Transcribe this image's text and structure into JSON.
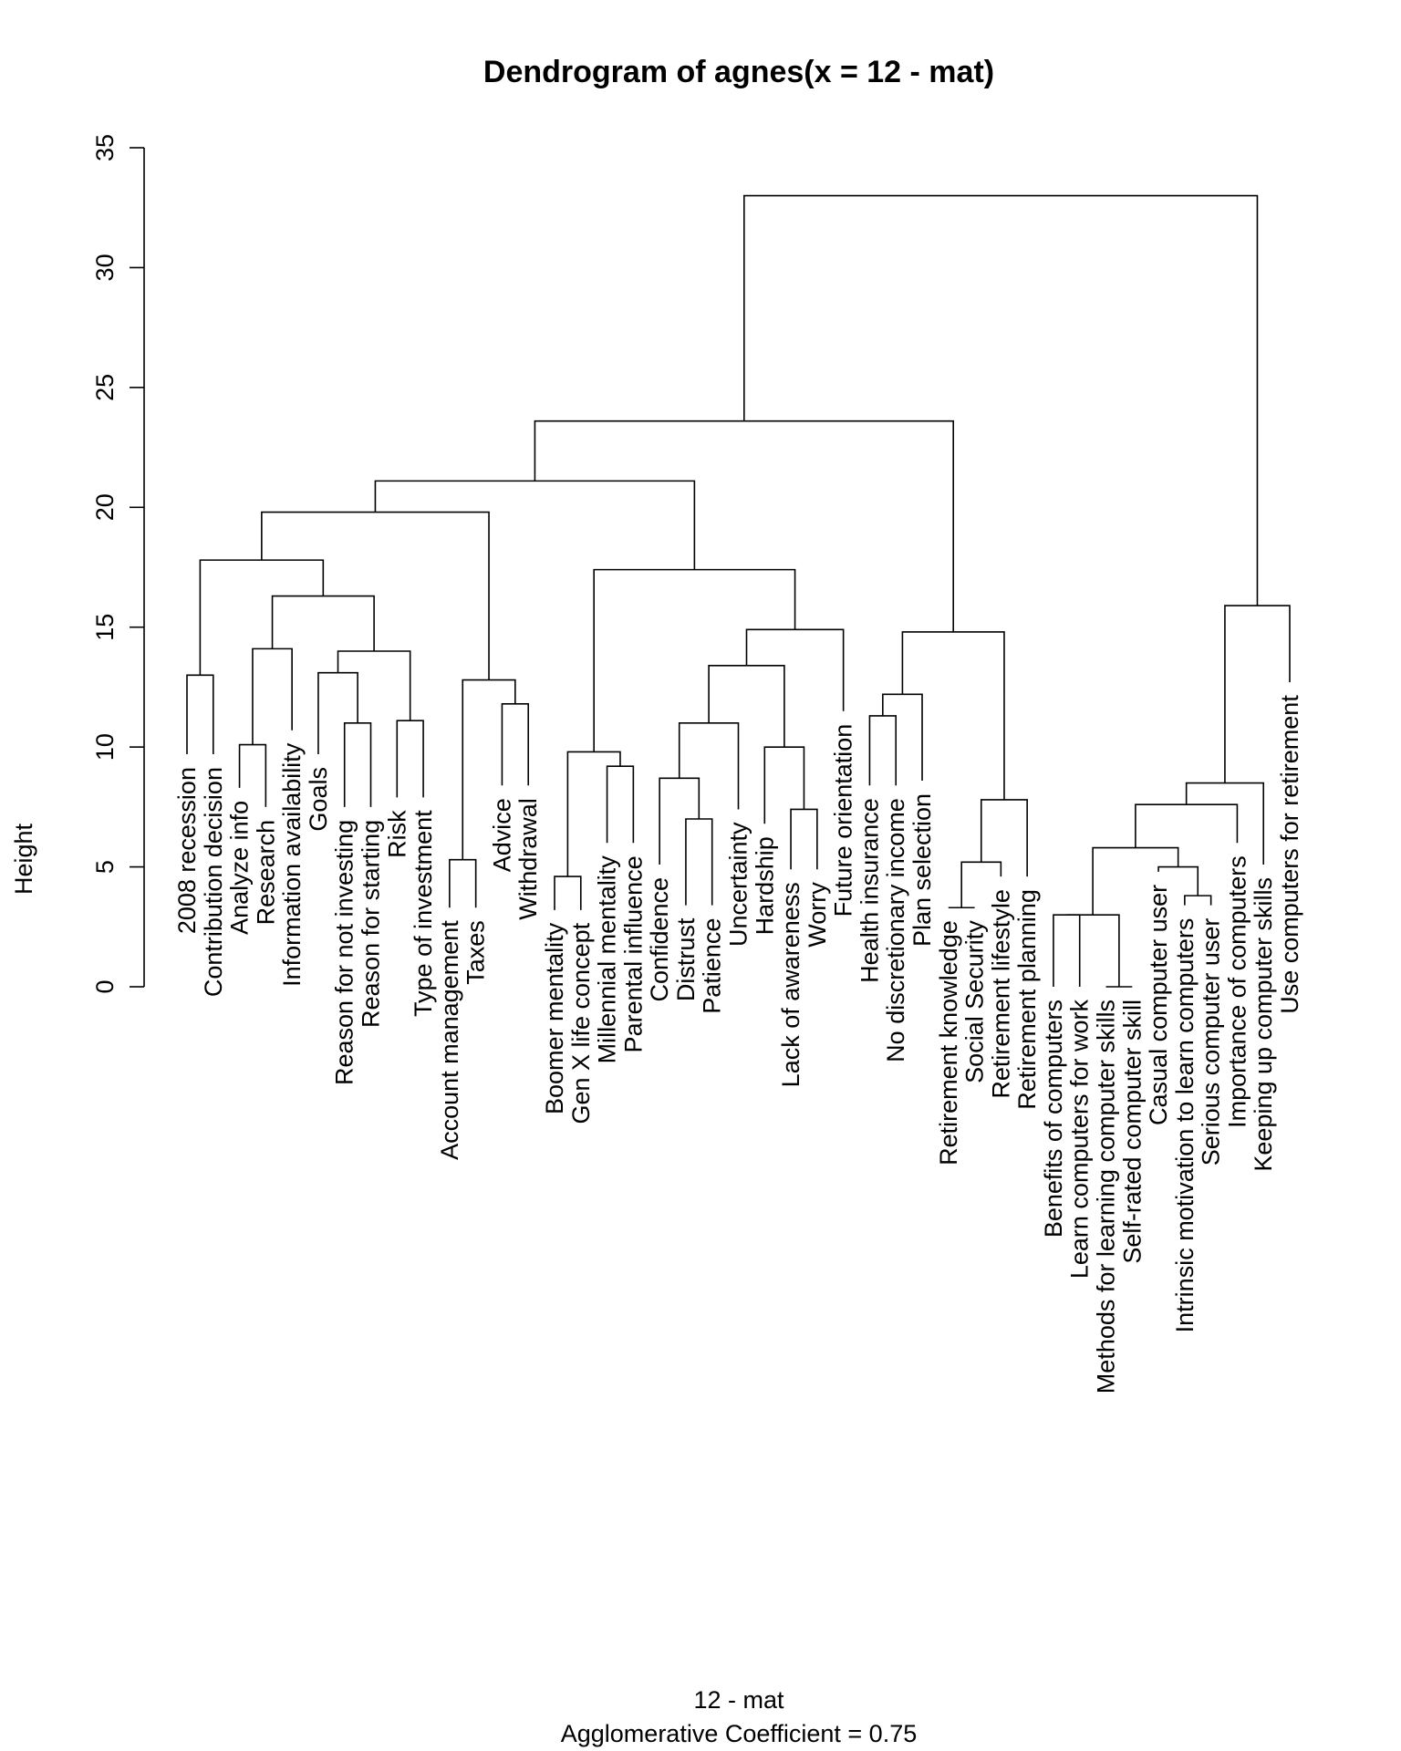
{
  "chart_data": {
    "type": "dendrogram",
    "title": "Dendrogram of  agnes(x = 12 - mat)",
    "xlabel": "12 - mat",
    "subtitle": "Agglomerative Coefficient =  0.75",
    "ylabel": "Height",
    "ylim": [
      0,
      35
    ],
    "yticks": [
      0,
      5,
      10,
      15,
      20,
      25,
      30,
      35
    ],
    "leaves": [
      "2008 recession",
      "Contribution decision",
      "Analyze info",
      "Research",
      "Information availability",
      "Goals",
      "Reason for not investing",
      "Reason for starting",
      "Risk",
      "Type of investment",
      "Account management",
      "Taxes",
      "Advice",
      "Withdrawal",
      "Boomer mentality",
      "Gen X life concept",
      "Millennial mentality",
      "Parental influence",
      "Confidence",
      "Distrust",
      "Patience",
      "Uncertainty",
      "Hardship",
      "Lack of awareness",
      "Worry",
      "Future orientation",
      "Health insurance",
      "No discretionary income",
      "Plan selection",
      "Retirement knowledge",
      "Social Security",
      "Retirement lifestyle",
      "Retirement planning",
      "Benefits of computers",
      "Learn computers for work",
      "Methods for learning computer skills",
      "Self-rated computer skill",
      "Casual computer user",
      "Intrinsic motivation to learn computers",
      "Serious computer user",
      "Importance of computers",
      "Keeping up computer skills",
      "Use computers for retirement"
    ],
    "leaf_heights": [
      9.7,
      9.7,
      8.3,
      7.5,
      10.7,
      9.7,
      7.5,
      7.5,
      7.9,
      7.9,
      3.3,
      3.3,
      8.4,
      8.4,
      3.2,
      3.2,
      6.0,
      6.0,
      5.1,
      3.4,
      3.4,
      7.4,
      6.8,
      4.9,
      4.9,
      11.5,
      8.4,
      8.4,
      8.6,
      3.3,
      3.3,
      4.6,
      4.6,
      0.0,
      0.0,
      0.0,
      0.0,
      4.8,
      3.4,
      3.4,
      6.0,
      5.1,
      12.7
    ],
    "merges": [
      {
        "a": -1,
        "b": -2,
        "h": 13.0
      },
      {
        "a": -3,
        "b": -4,
        "h": 10.1
      },
      {
        "a": 2,
        "b": -5,
        "h": 14.1
      },
      {
        "a": -7,
        "b": -8,
        "h": 11.0
      },
      {
        "a": -6,
        "b": 4,
        "h": 13.1
      },
      {
        "a": -9,
        "b": -10,
        "h": 11.1
      },
      {
        "a": 5,
        "b": 6,
        "h": 14.0
      },
      {
        "a": 3,
        "b": 7,
        "h": 16.3
      },
      {
        "a": 1,
        "b": 8,
        "h": 17.8
      },
      {
        "a": -11,
        "b": -12,
        "h": 5.3
      },
      {
        "a": -13,
        "b": -14,
        "h": 11.8
      },
      {
        "a": 10,
        "b": 11,
        "h": 12.8
      },
      {
        "a": 9,
        "b": 12,
        "h": 19.8
      },
      {
        "a": -15,
        "b": -16,
        "h": 4.6
      },
      {
        "a": -17,
        "b": -18,
        "h": 9.2
      },
      {
        "a": 14,
        "b": 15,
        "h": 9.8
      },
      {
        "a": -20,
        "b": -21,
        "h": 7.0
      },
      {
        "a": -19,
        "b": 17,
        "h": 8.7
      },
      {
        "a": 18,
        "b": -22,
        "h": 11.0
      },
      {
        "a": -24,
        "b": -25,
        "h": 7.4
      },
      {
        "a": -23,
        "b": 20,
        "h": 10.0
      },
      {
        "a": 19,
        "b": 21,
        "h": 13.4
      },
      {
        "a": 22,
        "b": -26,
        "h": 14.9
      },
      {
        "a": 16,
        "b": 23,
        "h": 17.4
      },
      {
        "a": 13,
        "b": 24,
        "h": 21.1
      },
      {
        "a": -27,
        "b": -28,
        "h": 11.3
      },
      {
        "a": 26,
        "b": -29,
        "h": 12.2
      },
      {
        "a": -30,
        "b": -31,
        "h": 3.3
      },
      {
        "a": 28,
        "b": -32,
        "h": 5.2
      },
      {
        "a": 29,
        "b": -33,
        "h": 7.8
      },
      {
        "a": 27,
        "b": 30,
        "h": 14.8
      },
      {
        "a": 25,
        "b": 31,
        "h": 23.6
      },
      {
        "a": -34,
        "b": -35,
        "h": 3.0
      },
      {
        "a": -36,
        "b": -37,
        "h": 0.0
      },
      {
        "a": 33,
        "b": 34,
        "h": 3.0
      },
      {
        "a": -39,
        "b": -40,
        "h": 3.8
      },
      {
        "a": -38,
        "b": 36,
        "h": 5.0
      },
      {
        "a": 35,
        "b": 37,
        "h": 5.8
      },
      {
        "a": 38,
        "b": -41,
        "h": 7.6
      },
      {
        "a": 39,
        "b": -42,
        "h": 8.5
      },
      {
        "a": 40,
        "b": -43,
        "h": 15.9
      },
      {
        "a": 32,
        "b": 41,
        "h": 33.0
      }
    ]
  }
}
